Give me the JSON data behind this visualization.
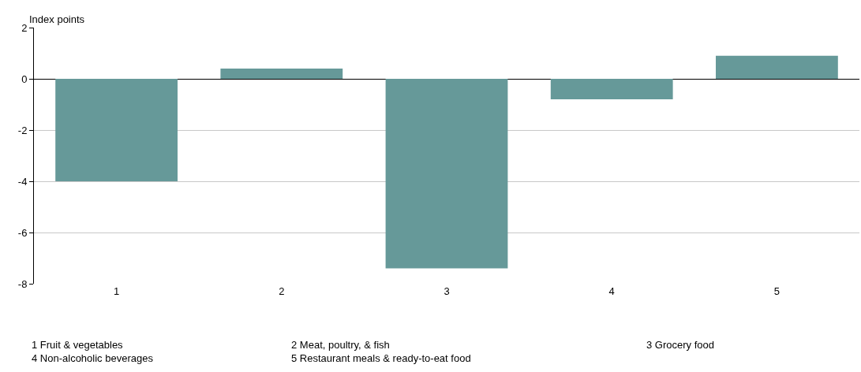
{
  "chart_data": {
    "type": "bar",
    "ylabel": "Index points",
    "categories": [
      "1",
      "2",
      "3",
      "4",
      "5"
    ],
    "values": [
      -4.0,
      0.4,
      -7.4,
      -0.8,
      0.9
    ],
    "color": "#669999",
    "ylim": [
      -8,
      2
    ],
    "yticks": [
      -8,
      -6,
      -4,
      -2,
      0,
      2
    ],
    "grid": "y",
    "annotations": [
      "1 Fruit & vegetables",
      "2 Meat, poultry, & fish",
      "3 Grocery food",
      "4 Non-alcoholic beverages",
      "5 Restaurant meals & ready-to-eat food"
    ]
  }
}
